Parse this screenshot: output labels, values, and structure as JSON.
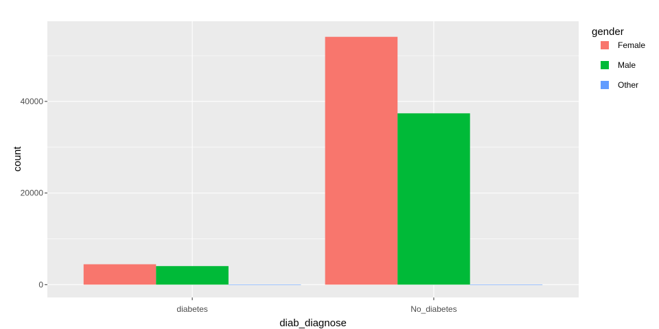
{
  "chart_data": {
    "type": "bar",
    "xlabel": "diab_diagnose",
    "ylabel": "count",
    "categories": [
      "diabetes",
      "No_diabetes"
    ],
    "series": [
      {
        "name": "Female",
        "color": "#F8766D",
        "values": [
          4450,
          54100
        ]
      },
      {
        "name": "Male",
        "color": "#00BA38",
        "values": [
          4050,
          37400
        ]
      },
      {
        "name": "Other",
        "color": "#619CFF",
        "values": [
          0,
          18
        ]
      }
    ],
    "ylim": [
      -2800,
      57500
    ],
    "yticks": [
      0,
      20000,
      40000
    ],
    "ytick_labels": [
      "0",
      "20000",
      "40000"
    ],
    "legend": {
      "title": "gender",
      "placement": "right"
    },
    "grid": true
  }
}
